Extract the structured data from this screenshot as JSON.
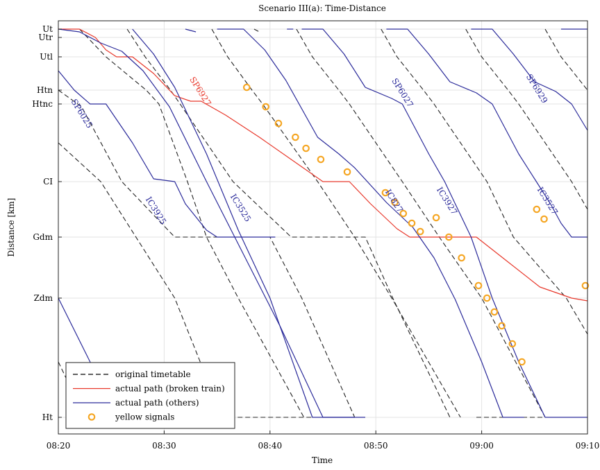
{
  "chart_data": {
    "type": "line",
    "title": "Scenario III(a): Time-Distance",
    "xlabel": "Time",
    "ylabel": "Distance [km]",
    "x_range_min": [
      0,
      50
    ],
    "x_ticks": [
      {
        "v": 0,
        "label": "08:20"
      },
      {
        "v": 10,
        "label": "08:30"
      },
      {
        "v": 20,
        "label": "08:40"
      },
      {
        "v": 30,
        "label": "08:50"
      },
      {
        "v": 40,
        "label": "09:00"
      },
      {
        "v": 50,
        "label": "09:10"
      }
    ],
    "stations": [
      {
        "name": "Ut",
        "km": 0
      },
      {
        "name": "Utr",
        "km": 0.6
      },
      {
        "name": "Utl",
        "km": 2.0
      },
      {
        "name": "Htn",
        "km": 4.4
      },
      {
        "name": "Htnc",
        "km": 5.4
      },
      {
        "name": "CI",
        "km": 11.0
      },
      {
        "name": "Gdm",
        "km": 15.0
      },
      {
        "name": "Zdm",
        "km": 19.4
      },
      {
        "name": "Ht",
        "km": 28.0
      }
    ],
    "y_range": [
      -0.6,
      29.2
    ],
    "grid": true,
    "legend_position": "bottom-left",
    "legend": [
      {
        "label": "original timetable",
        "style": "dashed",
        "color": "#000000"
      },
      {
        "label": "actual path (broken train)",
        "style": "solid",
        "color": "#e8382b"
      },
      {
        "label": "actual path (others)",
        "style": "solid",
        "color": "#2a2a9a"
      },
      {
        "label": "yellow signals",
        "style": "marker",
        "color": "#f5a623"
      }
    ],
    "train_labels": [
      {
        "text": "SP6025",
        "t": 2.0,
        "km": 6.2,
        "color": "blue"
      },
      {
        "text": "SP6927",
        "t": 13.2,
        "km": 4.6,
        "color": "red"
      },
      {
        "text": "IC3925",
        "t": 9.0,
        "km": 13.2,
        "color": "blue"
      },
      {
        "text": "IC3525",
        "t": 17.0,
        "km": 13.0,
        "color": "blue"
      },
      {
        "text": "SP6027",
        "t": 32.3,
        "km": 4.7,
        "color": "blue"
      },
      {
        "text": "IC827",
        "t": 31.5,
        "km": 12.5,
        "color": "blue"
      },
      {
        "text": "IC3927",
        "t": 36.5,
        "km": 12.5,
        "color": "blue"
      },
      {
        "text": "SP6929",
        "t": 45.0,
        "km": 4.4,
        "color": "blue"
      },
      {
        "text": "IC3527",
        "t": 46.0,
        "km": 12.5,
        "color": "blue"
      }
    ],
    "series": [
      {
        "kind": "planned",
        "points": [
          [
            2,
            0
          ],
          [
            4.5,
            2.0
          ],
          [
            8.3,
            4.4
          ],
          [
            9.5,
            5.4
          ],
          [
            12.2,
            11.0
          ],
          [
            14,
            15.0
          ],
          [
            17,
            19.4
          ],
          [
            23.2,
            28.0
          ]
        ]
      },
      {
        "kind": "planned",
        "points": [
          [
            6.5,
            0
          ],
          [
            8.2,
            2.0
          ],
          [
            10.6,
            4.4
          ],
          [
            11.5,
            5.4
          ],
          [
            16.5,
            11.0
          ],
          [
            22,
            15.0
          ],
          [
            29,
            15.0
          ],
          [
            31.6,
            19.4
          ],
          [
            37,
            28.0
          ]
        ]
      },
      {
        "kind": "planned",
        "points": [
          [
            14.5,
            0
          ],
          [
            16,
            2.0
          ],
          [
            18.3,
            4.4
          ],
          [
            19.3,
            5.4
          ],
          [
            24.5,
            11.0
          ],
          [
            28,
            15.0
          ],
          [
            31.5,
            19.4
          ],
          [
            38,
            28.0
          ]
        ]
      },
      {
        "kind": "planned",
        "points": [
          [
            22.5,
            0
          ],
          [
            24,
            2.0
          ],
          [
            26.5,
            4.4
          ],
          [
            27.5,
            5.4
          ],
          [
            32.5,
            11.0
          ],
          [
            36,
            15.0
          ],
          [
            40,
            19.4
          ],
          [
            46,
            28.0
          ]
        ]
      },
      {
        "kind": "planned",
        "points": [
          [
            30.5,
            0
          ],
          [
            32,
            2.0
          ],
          [
            34.5,
            4.4
          ],
          [
            35.5,
            5.4
          ],
          [
            40.5,
            11.0
          ],
          [
            43,
            15.0
          ],
          [
            48,
            19.4
          ],
          [
            50,
            22.0
          ]
        ]
      },
      {
        "kind": "planned",
        "points": [
          [
            38.5,
            0
          ],
          [
            40,
            2.0
          ],
          [
            42.5,
            4.4
          ],
          [
            43.5,
            5.4
          ],
          [
            48.5,
            11.0
          ],
          [
            50,
            13.0
          ]
        ]
      },
      {
        "kind": "planned",
        "points": [
          [
            46,
            0
          ],
          [
            47.5,
            2.0
          ],
          [
            50,
            4.4
          ]
        ]
      },
      {
        "kind": "planned",
        "points": [
          [
            0,
            4.4
          ],
          [
            2.2,
            5.6
          ],
          [
            6,
            11.0
          ],
          [
            11,
            15.0
          ],
          [
            20,
            15.0
          ],
          [
            23,
            19.4
          ],
          [
            28,
            28.0
          ]
        ]
      },
      {
        "kind": "planned",
        "points": [
          [
            0,
            8.2
          ],
          [
            4,
            11.0
          ],
          [
            11,
            19.4
          ],
          [
            15.5,
            28.0
          ]
        ]
      },
      {
        "kind": "planned",
        "points": [
          [
            0,
            24.0
          ],
          [
            2.5,
            28.0
          ]
        ]
      },
      {
        "kind": "planned",
        "points": [
          [
            18.5,
            0
          ],
          [
            19,
            0.2
          ]
        ]
      },
      {
        "kind": "planned",
        "points": [
          [
            15.5,
            28.0
          ],
          [
            25,
            28.0
          ]
        ]
      },
      {
        "kind": "planned",
        "points": [
          [
            39.5,
            28.0
          ],
          [
            50,
            28.0
          ]
        ]
      },
      {
        "kind": "broken",
        "points": [
          [
            0,
            0
          ],
          [
            2,
            0
          ],
          [
            3.5,
            0.6
          ],
          [
            4.5,
            1.5
          ],
          [
            5.5,
            2.0
          ],
          [
            7,
            2.0
          ],
          [
            9,
            3.2
          ],
          [
            11,
            4.8
          ],
          [
            12.5,
            5.2
          ],
          [
            13.5,
            5.2
          ],
          [
            15.8,
            6.2
          ],
          [
            19,
            7.8
          ],
          [
            22,
            9.4
          ],
          [
            25,
            11.0
          ],
          [
            27.5,
            11.0
          ],
          [
            29.5,
            12.6
          ],
          [
            32,
            14.4
          ],
          [
            33.2,
            15.0
          ],
          [
            38,
            15.0
          ],
          [
            39.5,
            15.0
          ],
          [
            42.5,
            16.8
          ],
          [
            45.5,
            18.6
          ],
          [
            48.5,
            19.4
          ],
          [
            50,
            19.6
          ]
        ]
      },
      {
        "kind": "other",
        "points": [
          [
            0,
            0
          ],
          [
            2,
            0.2
          ],
          [
            4,
            1.0
          ],
          [
            6,
            1.6
          ],
          [
            8,
            3.0
          ],
          [
            10.5,
            5.6
          ],
          [
            14,
            11.0
          ],
          [
            18,
            17.0
          ],
          [
            21,
            21.5
          ],
          [
            25,
            28.0
          ],
          [
            29,
            28.0
          ]
        ]
      },
      {
        "kind": "other",
        "points": [
          [
            7,
            0
          ],
          [
            9,
            1.8
          ],
          [
            11,
            4.2
          ],
          [
            14,
            9.0
          ],
          [
            17,
            14.5
          ],
          [
            20,
            19.4
          ],
          [
            24,
            28.0
          ],
          [
            28,
            28.0
          ]
        ]
      },
      {
        "kind": "other",
        "points": [
          [
            15,
            0
          ],
          [
            17.5,
            0
          ],
          [
            19.5,
            1.5
          ],
          [
            21.5,
            3.7
          ],
          [
            24.5,
            7.8
          ],
          [
            26.5,
            9.0
          ],
          [
            28,
            10.0
          ],
          [
            31,
            12.5
          ],
          [
            33.5,
            14.3
          ],
          [
            35.5,
            16.5
          ],
          [
            37.5,
            19.5
          ],
          [
            40,
            24.0
          ],
          [
            42,
            28.0
          ],
          [
            44,
            28.0
          ]
        ]
      },
      {
        "kind": "other",
        "points": [
          [
            23,
            0
          ],
          [
            25,
            0
          ],
          [
            27,
            1.8
          ],
          [
            29,
            4.2
          ],
          [
            31.5,
            5.0
          ],
          [
            32.5,
            5.4
          ],
          [
            35,
            9.0
          ],
          [
            36.5,
            11.0
          ],
          [
            37.5,
            12.6
          ],
          [
            39,
            15.0
          ],
          [
            41,
            19.4
          ],
          [
            43.5,
            24.0
          ],
          [
            46,
            28.0
          ],
          [
            50,
            28.0
          ]
        ]
      },
      {
        "kind": "other",
        "points": [
          [
            31,
            0
          ],
          [
            33,
            0
          ],
          [
            35,
            1.8
          ],
          [
            37,
            3.8
          ],
          [
            39.5,
            4.6
          ],
          [
            41,
            5.4
          ],
          [
            43.5,
            9.0
          ],
          [
            45,
            10.8
          ],
          [
            46.5,
            12.6
          ],
          [
            47.5,
            14.0
          ],
          [
            48.5,
            15.0
          ],
          [
            50,
            15.0
          ]
        ]
      },
      {
        "kind": "other",
        "points": [
          [
            39,
            0
          ],
          [
            41,
            0
          ],
          [
            43,
            1.8
          ],
          [
            45,
            3.8
          ],
          [
            47,
            4.5
          ],
          [
            48.5,
            5.4
          ],
          [
            50,
            7.3
          ]
        ]
      },
      {
        "kind": "other",
        "points": [
          [
            0,
            3.0
          ],
          [
            1.5,
            4.4
          ],
          [
            3,
            5.4
          ],
          [
            4.5,
            5.4
          ],
          [
            7,
            8.2
          ],
          [
            9,
            10.8
          ],
          [
            11,
            11.0
          ],
          [
            12,
            12.6
          ],
          [
            14,
            14.5
          ],
          [
            15,
            15.0
          ],
          [
            20.5,
            15.0
          ]
        ]
      },
      {
        "kind": "other",
        "points": [
          [
            0,
            19.4
          ],
          [
            3,
            24.0
          ],
          [
            5.3,
            28.0
          ]
        ]
      },
      {
        "kind": "other",
        "points": [
          [
            21.6,
            0
          ],
          [
            22.2,
            0
          ]
        ]
      },
      {
        "kind": "other",
        "points": [
          [
            47.5,
            0
          ],
          [
            50,
            0
          ]
        ]
      },
      {
        "kind": "other",
        "points": [
          [
            12,
            0
          ],
          [
            13,
            0.2
          ]
        ]
      }
    ],
    "yellow_signals": [
      [
        17.8,
        4.2
      ],
      [
        19.6,
        5.6
      ],
      [
        20.8,
        6.8
      ],
      [
        22.4,
        7.8
      ],
      [
        23.4,
        8.6
      ],
      [
        24.8,
        9.4
      ],
      [
        27.3,
        10.3
      ],
      [
        30.9,
        11.8
      ],
      [
        31.8,
        12.5
      ],
      [
        32.6,
        13.3
      ],
      [
        33.4,
        14.0
      ],
      [
        34.2,
        14.6
      ],
      [
        35.7,
        13.6
      ],
      [
        36.9,
        15.0
      ],
      [
        38.1,
        16.5
      ],
      [
        39.7,
        18.5
      ],
      [
        40.5,
        19.4
      ],
      [
        41.2,
        20.4
      ],
      [
        41.9,
        21.4
      ],
      [
        42.9,
        22.7
      ],
      [
        43.8,
        24.0
      ],
      [
        45.2,
        13.0
      ],
      [
        45.9,
        13.7
      ],
      [
        49.8,
        18.5
      ]
    ]
  }
}
